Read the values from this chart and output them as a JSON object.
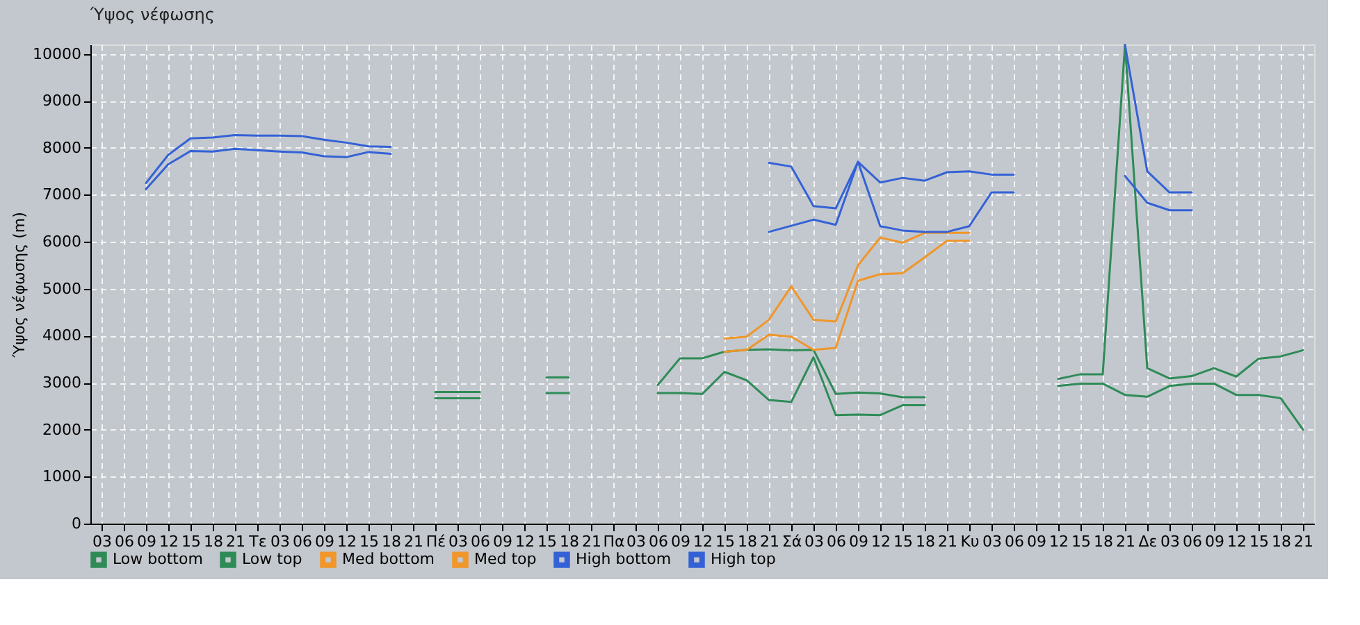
{
  "chart_data": {
    "type": "line",
    "title": "Ύψος νέφωσης",
    "ylabel": "Ύψος νέφωσης (m)",
    "categories": [
      "03",
      "06",
      "09",
      "12",
      "15",
      "18",
      "21",
      "Τε",
      "03",
      "06",
      "09",
      "12",
      "15",
      "18",
      "21",
      "Πέ",
      "03",
      "06",
      "09",
      "12",
      "15",
      "18",
      "21",
      "Πα",
      "03",
      "06",
      "09",
      "12",
      "15",
      "18",
      "21",
      "Σά",
      "03",
      "06",
      "09",
      "12",
      "15",
      "18",
      "21",
      "Κυ",
      "03",
      "06",
      "09",
      "12",
      "15",
      "18",
      "21",
      "Δε",
      "03",
      "06",
      "09",
      "12",
      "15",
      "18",
      "21"
    ],
    "ylim": [
      0,
      10200
    ],
    "yticks": [
      0,
      1000,
      2000,
      3000,
      4000,
      5000,
      6000,
      7000,
      8000,
      9000,
      10000
    ],
    "grid": true,
    "legend": "bottom",
    "series": [
      {
        "name": "Low bottom",
        "color": "#2e8b57",
        "values": [
          null,
          null,
          null,
          null,
          null,
          null,
          null,
          null,
          null,
          null,
          null,
          null,
          null,
          null,
          null,
          2670,
          2670,
          2670,
          null,
          null,
          2780,
          2780,
          null,
          null,
          null,
          2780,
          2780,
          2760,
          3230,
          3050,
          2630,
          2590,
          3540,
          2310,
          2320,
          2310,
          2520,
          2520,
          null,
          null,
          null,
          null,
          null,
          2930,
          2980,
          2980,
          2740,
          2700,
          2930,
          2980,
          2980,
          2740,
          2740,
          2670,
          2000
        ]
      },
      {
        "name": "Low top",
        "color": "#2e8b57",
        "values": [
          null,
          null,
          null,
          null,
          null,
          null,
          null,
          null,
          null,
          null,
          null,
          null,
          null,
          null,
          null,
          2800,
          2800,
          2800,
          null,
          null,
          3110,
          3110,
          null,
          null,
          null,
          2950,
          3520,
          3520,
          3660,
          3700,
          3710,
          3690,
          3700,
          2760,
          2790,
          2770,
          2690,
          2690,
          null,
          null,
          null,
          null,
          null,
          3080,
          3180,
          3180,
          10190,
          3310,
          3090,
          3140,
          3310,
          3130,
          3510,
          3560,
          3690
        ]
      },
      {
        "name": "Med bottom",
        "color": "#f0962a",
        "values": [
          null,
          null,
          null,
          null,
          null,
          null,
          null,
          null,
          null,
          null,
          null,
          null,
          null,
          null,
          null,
          null,
          null,
          null,
          null,
          null,
          null,
          null,
          null,
          null,
          null,
          null,
          null,
          null,
          3660,
          3700,
          4020,
          3980,
          3700,
          3740,
          5170,
          5310,
          5330,
          5670,
          6020,
          6020,
          null,
          null,
          null,
          null,
          null,
          null,
          null,
          null,
          null,
          null,
          null,
          null,
          null,
          null,
          null
        ]
      },
      {
        "name": "Med top",
        "color": "#f0962a",
        "values": [
          null,
          null,
          null,
          null,
          null,
          null,
          null,
          null,
          null,
          null,
          null,
          null,
          null,
          null,
          null,
          null,
          null,
          null,
          null,
          null,
          null,
          null,
          null,
          null,
          null,
          null,
          null,
          null,
          3940,
          3980,
          4340,
          5050,
          4340,
          4300,
          5500,
          6090,
          5980,
          6190,
          6190,
          6190,
          null,
          null,
          null,
          null,
          null,
          null,
          null,
          null,
          null,
          null,
          null,
          null,
          null,
          null,
          null
        ]
      },
      {
        "name": "High bottom",
        "color": "#3462d6",
        "values": [
          null,
          null,
          7120,
          7650,
          7930,
          7920,
          7980,
          7950,
          7920,
          7900,
          7820,
          7800,
          7910,
          7870,
          null,
          null,
          null,
          null,
          null,
          null,
          null,
          null,
          null,
          null,
          null,
          null,
          null,
          null,
          null,
          null,
          6210,
          6340,
          6470,
          6360,
          7700,
          6330,
          6240,
          6210,
          6210,
          6330,
          7050,
          7050,
          null,
          null,
          null,
          null,
          7400,
          6830,
          6670,
          6670,
          null,
          null,
          null,
          null,
          null
        ]
      },
      {
        "name": "High top",
        "color": "#3462d6",
        "values": [
          null,
          null,
          7250,
          7850,
          8200,
          8220,
          8270,
          8260,
          8260,
          8250,
          8170,
          8110,
          8030,
          8020,
          null,
          null,
          null,
          null,
          null,
          null,
          null,
          null,
          null,
          null,
          null,
          null,
          null,
          null,
          null,
          null,
          7680,
          7600,
          6760,
          6710,
          7700,
          7260,
          7360,
          7300,
          7480,
          7500,
          7430,
          7430,
          null,
          null,
          null,
          null,
          10190,
          7500,
          7050,
          7050,
          null,
          null,
          null,
          null,
          null
        ]
      }
    ]
  }
}
